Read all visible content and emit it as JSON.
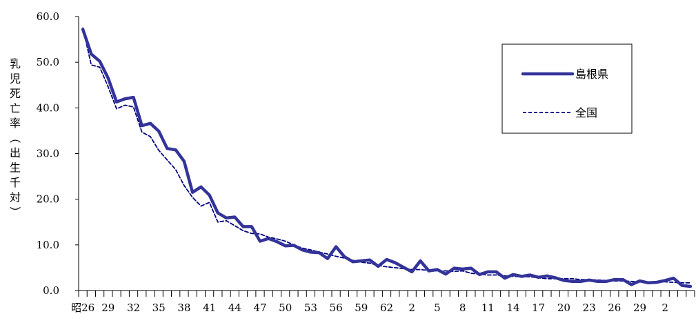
{
  "chart_data": {
    "type": "line",
    "ylabel": "乳児死亡率（出生千対）",
    "ylim": [
      0,
      60
    ],
    "yticks": [
      "0.0",
      "10.0",
      "20.0",
      "30.0",
      "40.0",
      "50.0",
      "60.0"
    ],
    "xtick_labels": [
      "昭26",
      "29",
      "32",
      "35",
      "38",
      "41",
      "44",
      "47",
      "50",
      "53",
      "56",
      "59",
      "62",
      "2",
      "5",
      "8",
      "11",
      "14",
      "17",
      "20",
      "23",
      "26",
      "29",
      "2"
    ],
    "legend_position": "top-right",
    "colors": {
      "shimane": "#333399",
      "national": "#000080"
    },
    "series": [
      {
        "name": "島根県",
        "style": "solid-thick",
        "values": [
          57.2,
          51.8,
          50.2,
          46.5,
          41.3,
          42.0,
          42.3,
          36.1,
          36.6,
          34.9,
          31.1,
          30.8,
          28.3,
          21.5,
          22.7,
          20.9,
          17.0,
          15.9,
          16.1,
          14.0,
          14.0,
          10.8,
          11.4,
          10.7,
          9.8,
          9.9,
          8.9,
          8.4,
          8.3,
          7.0,
          9.6,
          7.4,
          6.3,
          6.5,
          6.7,
          5.3,
          6.8,
          6.1,
          5.1,
          4.1,
          6.5,
          4.3,
          4.6,
          3.6,
          4.9,
          4.7,
          4.9,
          3.5,
          4.1,
          4.1,
          2.7,
          3.5,
          3.1,
          3.4,
          2.9,
          3.2,
          2.8,
          2.2,
          2.0,
          2.0,
          2.3,
          2.0,
          2.0,
          2.4,
          2.4,
          1.3,
          2.1,
          1.7,
          1.8,
          2.2,
          2.7,
          1.1,
          0.9
        ]
      },
      {
        "name": "全国",
        "style": "dashed",
        "values": [
          57.5,
          49.4,
          48.9,
          44.6,
          39.8,
          40.6,
          40.2,
          34.7,
          33.7,
          30.7,
          28.6,
          26.5,
          23.0,
          20.4,
          18.5,
          19.3,
          15.0,
          15.3,
          14.2,
          13.1,
          12.5,
          12.4,
          11.7,
          11.3,
          10.8,
          10.0,
          9.3,
          8.9,
          8.4,
          8.0,
          7.5,
          7.1,
          6.6,
          6.2,
          6.0,
          5.5,
          5.2,
          5.0,
          4.8,
          4.6,
          4.6,
          4.4,
          4.3,
          4.3,
          4.2,
          4.3,
          3.8,
          3.6,
          3.4,
          3.4,
          3.2,
          3.1,
          3.0,
          3.0,
          2.8,
          2.6,
          2.6,
          2.6,
          2.6,
          2.4,
          2.4,
          2.3,
          2.2,
          2.1,
          2.1,
          2.0,
          1.9,
          1.9,
          1.9,
          1.9,
          1.8,
          1.7,
          1.7
        ]
      }
    ]
  }
}
